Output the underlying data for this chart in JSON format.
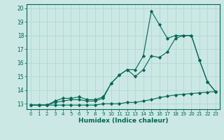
{
  "xlabel": "Humidex (Indice chaleur)",
  "background_color": "#cce8e4",
  "grid_color": "#b0d8d0",
  "line_color": "#006655",
  "xlim": [
    -0.5,
    23.5
  ],
  "ylim": [
    12.6,
    20.3
  ],
  "yticks": [
    13,
    14,
    15,
    16,
    17,
    18,
    19,
    20
  ],
  "xticks": [
    0,
    1,
    2,
    3,
    4,
    5,
    6,
    7,
    8,
    9,
    10,
    11,
    12,
    13,
    14,
    15,
    16,
    17,
    18,
    19,
    20,
    21,
    22,
    23
  ],
  "line1_x": [
    0,
    1,
    2,
    3,
    4,
    5,
    6,
    7,
    8,
    9,
    10,
    11,
    12,
    13,
    14,
    15,
    16,
    17,
    18,
    19,
    20,
    21,
    22,
    23
  ],
  "line1_y": [
    12.9,
    12.9,
    12.9,
    12.9,
    12.9,
    12.9,
    12.9,
    12.9,
    12.9,
    13.0,
    13.0,
    13.0,
    13.1,
    13.1,
    13.2,
    13.3,
    13.45,
    13.55,
    13.65,
    13.7,
    13.75,
    13.8,
    13.85,
    13.9
  ],
  "line2_x": [
    0,
    1,
    2,
    3,
    4,
    5,
    6,
    7,
    8,
    9,
    10,
    11,
    12,
    13,
    14,
    15,
    16,
    17,
    18,
    19,
    20,
    21,
    22,
    23
  ],
  "line2_y": [
    12.9,
    12.9,
    12.9,
    13.1,
    13.2,
    13.3,
    13.3,
    13.2,
    13.2,
    13.4,
    14.5,
    15.1,
    15.5,
    15.0,
    15.5,
    16.5,
    16.4,
    16.8,
    17.8,
    18.0,
    18.0,
    16.2,
    14.6,
    13.9
  ],
  "line3_x": [
    0,
    1,
    2,
    3,
    4,
    5,
    6,
    7,
    8,
    9,
    10,
    11,
    12,
    13,
    14,
    15,
    16,
    17,
    18,
    19,
    20,
    21,
    22,
    23
  ],
  "line3_y": [
    12.9,
    12.9,
    12.9,
    13.2,
    13.4,
    13.4,
    13.5,
    13.3,
    13.3,
    13.5,
    14.5,
    15.1,
    15.5,
    15.5,
    16.5,
    19.8,
    18.8,
    17.8,
    18.0,
    18.0,
    18.0,
    16.2,
    14.6,
    13.9
  ]
}
